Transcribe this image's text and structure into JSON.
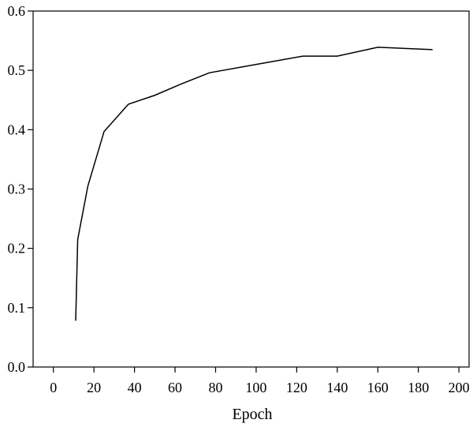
{
  "chart_data": {
    "type": "line",
    "title": "",
    "xlabel": "Epoch",
    "ylabel": "",
    "xlim": [
      -10,
      205
    ],
    "ylim": [
      0.0,
      0.6
    ],
    "x_ticks": [
      0,
      20,
      40,
      60,
      80,
      100,
      120,
      140,
      160,
      180,
      200
    ],
    "x_tick_labels": [
      "0",
      "20",
      "40",
      "60",
      "80",
      "100",
      "120",
      "140",
      "160",
      "180",
      "200"
    ],
    "y_ticks": [
      0.0,
      0.1,
      0.2,
      0.3,
      0.4,
      0.5,
      0.6
    ],
    "y_tick_labels": [
      "0.0",
      "0.1",
      "0.2",
      "0.3",
      "0.4",
      "0.5",
      "0.6"
    ],
    "grid": false,
    "legend": "none",
    "line_color": "#000000",
    "series": [
      {
        "x": [
          11,
          12,
          17,
          25,
          37,
          50,
          63,
          77,
          100,
          123,
          140,
          160,
          187
        ],
        "y": [
          0.078,
          0.215,
          0.305,
          0.397,
          0.443,
          0.458,
          0.477,
          0.496,
          0.51,
          0.524,
          0.524,
          0.539,
          0.535
        ]
      }
    ]
  }
}
